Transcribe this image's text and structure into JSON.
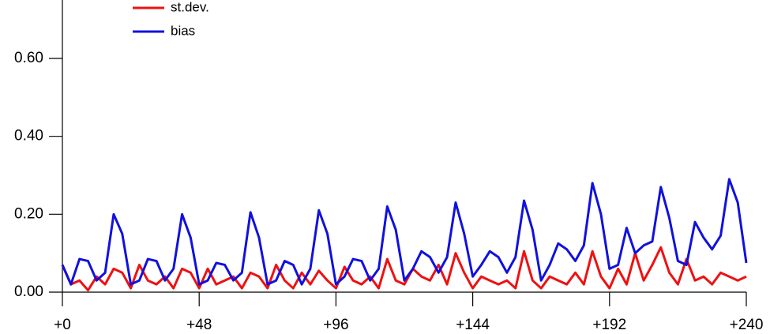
{
  "chart_data": {
    "type": "line",
    "x": [
      0,
      3,
      6,
      9,
      12,
      15,
      18,
      21,
      24,
      27,
      30,
      33,
      36,
      39,
      42,
      45,
      48,
      51,
      54,
      57,
      60,
      63,
      66,
      69,
      72,
      75,
      78,
      81,
      84,
      87,
      90,
      93,
      96,
      99,
      102,
      105,
      108,
      111,
      114,
      117,
      120,
      123,
      126,
      129,
      132,
      135,
      138,
      141,
      144,
      147,
      150,
      153,
      156,
      159,
      162,
      165,
      168,
      171,
      174,
      177,
      180,
      183,
      186,
      189,
      192,
      195,
      198,
      201,
      204,
      207,
      210,
      213,
      216,
      219,
      222,
      225,
      228,
      231,
      234,
      237,
      240
    ],
    "series": [
      {
        "name": "st.dev.",
        "color": "#ee1111",
        "values": [
          0.07,
          0.02,
          0.03,
          0.005,
          0.04,
          0.02,
          0.06,
          0.05,
          0.01,
          0.07,
          0.03,
          0.02,
          0.04,
          0.01,
          0.06,
          0.05,
          0.01,
          0.06,
          0.02,
          0.03,
          0.04,
          0.01,
          0.05,
          0.04,
          0.01,
          0.07,
          0.03,
          0.01,
          0.05,
          0.02,
          0.055,
          0.03,
          0.01,
          0.065,
          0.03,
          0.02,
          0.04,
          0.01,
          0.085,
          0.03,
          0.02,
          0.06,
          0.04,
          0.03,
          0.07,
          0.02,
          0.1,
          0.05,
          0.01,
          0.04,
          0.03,
          0.02,
          0.03,
          0.01,
          0.105,
          0.03,
          0.01,
          0.04,
          0.03,
          0.02,
          0.05,
          0.02,
          0.105,
          0.04,
          0.01,
          0.06,
          0.02,
          0.1,
          0.03,
          0.07,
          0.115,
          0.05,
          0.02,
          0.085,
          0.03,
          0.04,
          0.02,
          0.05,
          0.04,
          0.03,
          0.04
        ]
      },
      {
        "name": "bias",
        "color": "#1111dd",
        "values": [
          0.07,
          0.02,
          0.085,
          0.08,
          0.03,
          0.05,
          0.2,
          0.15,
          0.02,
          0.03,
          0.085,
          0.08,
          0.03,
          0.06,
          0.2,
          0.14,
          0.02,
          0.03,
          0.075,
          0.07,
          0.03,
          0.05,
          0.205,
          0.14,
          0.02,
          0.03,
          0.08,
          0.07,
          0.02,
          0.06,
          0.21,
          0.15,
          0.02,
          0.04,
          0.085,
          0.08,
          0.03,
          0.06,
          0.22,
          0.16,
          0.03,
          0.06,
          0.105,
          0.09,
          0.05,
          0.09,
          0.23,
          0.15,
          0.04,
          0.07,
          0.105,
          0.09,
          0.05,
          0.09,
          0.235,
          0.16,
          0.03,
          0.07,
          0.125,
          0.11,
          0.08,
          0.12,
          0.28,
          0.2,
          0.06,
          0.07,
          0.165,
          0.1,
          0.12,
          0.13,
          0.27,
          0.19,
          0.08,
          0.07,
          0.18,
          0.14,
          0.11,
          0.145,
          0.29,
          0.23,
          0.075
        ]
      }
    ],
    "xlim": [
      0,
      240
    ],
    "xticks": [
      {
        "value": 0,
        "label": "+0"
      },
      {
        "value": 48,
        "label": "+48"
      },
      {
        "value": 96,
        "label": "+96"
      },
      {
        "value": 144,
        "label": "+144"
      },
      {
        "value": 192,
        "label": "+192"
      },
      {
        "value": 240,
        "label": "+240"
      }
    ],
    "ylim": [
      0,
      0.75
    ],
    "yticks": [
      {
        "value": 0,
        "label": "0.00"
      },
      {
        "value": 0.2,
        "label": "0.20"
      },
      {
        "value": 0.4,
        "label": "0.40"
      },
      {
        "value": 0.6,
        "label": "0.60"
      }
    ],
    "legend": "upper left"
  }
}
